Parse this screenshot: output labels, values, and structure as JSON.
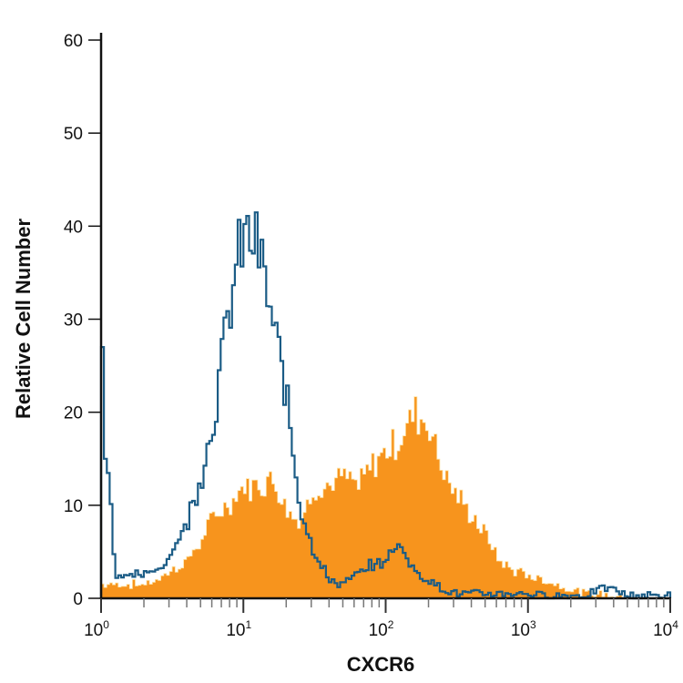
{
  "chart_data": {
    "type": "area",
    "title": "",
    "xlabel": "CXCR6",
    "ylabel": "Relative Cell Number",
    "xscale": "log",
    "xlim": [
      1,
      10000
    ],
    "ylim": [
      0,
      60
    ],
    "yticks": [
      "0",
      "10",
      "20",
      "30",
      "40",
      "50",
      "60"
    ],
    "xticks": [
      {
        "base": "10",
        "exp": "0"
      },
      {
        "base": "10",
        "exp": "1"
      },
      {
        "base": "10",
        "exp": "2"
      },
      {
        "base": "10",
        "exp": "3"
      },
      {
        "base": "10",
        "exp": "4"
      }
    ],
    "grid": false,
    "x": [
      1,
      1.26,
      1.58,
      2,
      2.51,
      3.16,
      3.98,
      5.01,
      6.31,
      7.94,
      10,
      12.6,
      15.8,
      20,
      25.1,
      31.6,
      39.8,
      50.1,
      63.1,
      79.4,
      100,
      126,
      158,
      200,
      251,
      316,
      398,
      501,
      631,
      794,
      1000,
      1259,
      1585,
      1995,
      2512,
      3162,
      3981,
      5012,
      6310,
      7943,
      10000
    ],
    "series": [
      {
        "style": "filled",
        "color": "#f7941d",
        "values": [
          1.5,
          1.5,
          1.5,
          1.5,
          2,
          3,
          4,
          6,
          9,
          10,
          12,
          12,
          13,
          10,
          8,
          12,
          12,
          13,
          12,
          14,
          16,
          17,
          20,
          19,
          14,
          11,
          9,
          7,
          4,
          3,
          2.5,
          2,
          1.5,
          1,
          0.5,
          0.5,
          0.3,
          0,
          0,
          0,
          0
        ]
      },
      {
        "style": "outline",
        "color": "#1b5c86",
        "values": [
          27,
          2.5,
          2.5,
          2.5,
          3,
          5,
          8,
          13,
          20,
          31,
          39,
          38,
          30,
          22,
          10,
          5,
          2,
          1.5,
          2.5,
          3.5,
          4,
          6,
          3,
          2,
          1,
          0.5,
          0.5,
          0.5,
          0.5,
          0.5,
          0.5,
          0.3,
          0.3,
          0.3,
          0.3,
          1,
          1,
          0.3,
          0.3,
          0.3,
          0.3
        ]
      }
    ]
  }
}
